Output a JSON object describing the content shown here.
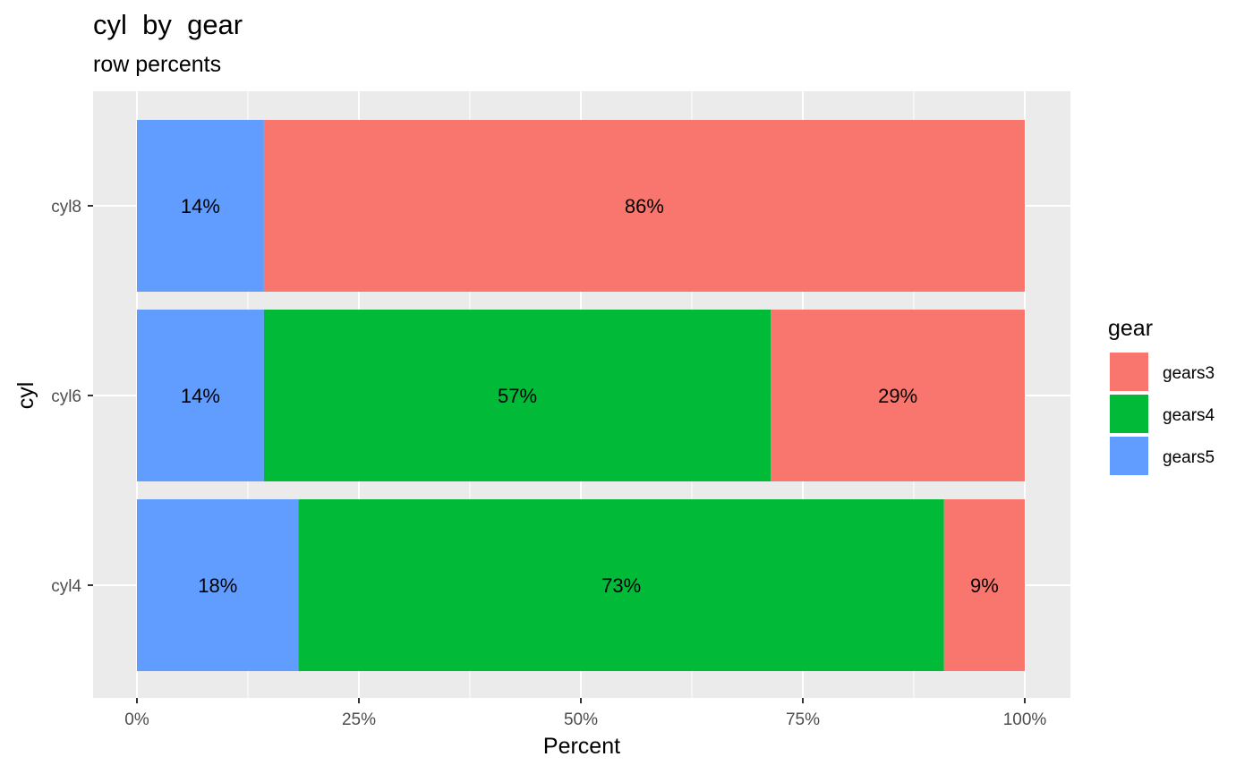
{
  "chart_data": {
    "type": "bar",
    "orientation": "horizontal",
    "stacked": true,
    "title": "cyl  by  gear",
    "subtitle": "row percents",
    "xlabel": "Percent",
    "ylabel": "cyl",
    "xlim": [
      0,
      1
    ],
    "x_ticks": [
      0,
      0.25,
      0.5,
      0.75,
      1
    ],
    "x_tick_labels": [
      "0%",
      "25%",
      "50%",
      "75%",
      "100%"
    ],
    "categories": [
      "cyl8",
      "cyl6",
      "cyl4"
    ],
    "series": [
      {
        "name": "gears5",
        "color": "#619CFF",
        "values": [
          0.143,
          0.143,
          0.182
        ],
        "labels": [
          "14%",
          "14%",
          "18%"
        ]
      },
      {
        "name": "gears4",
        "color": "#00BA38",
        "values": [
          0,
          0.571,
          0.727
        ],
        "labels": [
          "",
          "57%",
          "73%"
        ]
      },
      {
        "name": "gears3",
        "color": "#F8766D",
        "values": [
          0.857,
          0.286,
          0.091
        ],
        "labels": [
          "86%",
          "29%",
          "9%"
        ]
      }
    ],
    "legend": {
      "title": "gear",
      "position": "right",
      "items": [
        {
          "name": "gears3",
          "color": "#F8766D"
        },
        {
          "name": "gears4",
          "color": "#00BA38"
        },
        {
          "name": "gears5",
          "color": "#619CFF"
        }
      ]
    },
    "grid": true,
    "panel_background": "#EBEBEB"
  }
}
